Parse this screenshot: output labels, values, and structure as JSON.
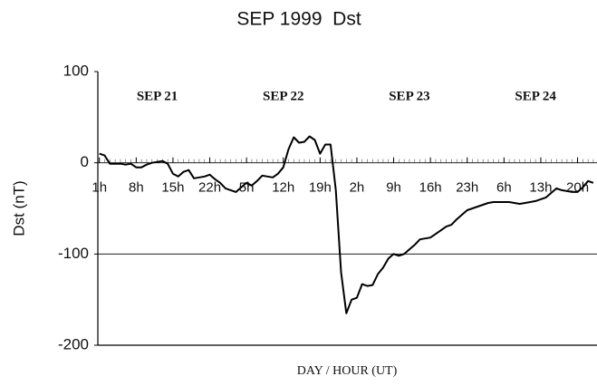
{
  "chart_data": {
    "type": "line",
    "title": "SEP 1999  Dst",
    "ylabel": "Dst (nT)",
    "xlabel": "DAY / HOUR (UT)",
    "annotations": [
      {
        "text": "SEP 21",
        "x": 12
      },
      {
        "text": "SEP 22",
        "x": 36
      },
      {
        "text": "SEP 23",
        "x": 60
      },
      {
        "text": "SEP 24",
        "x": 84
      }
    ],
    "x": [
      1,
      2,
      3,
      4,
      5,
      6,
      7,
      8,
      9,
      10,
      11,
      12,
      13,
      14,
      15,
      16,
      17,
      18,
      19,
      20,
      21,
      22,
      23,
      24,
      25,
      26,
      27,
      28,
      29,
      30,
      31,
      32,
      33,
      34,
      35,
      36,
      37,
      38,
      39,
      40,
      41,
      42,
      43,
      44,
      45,
      46,
      47,
      48,
      49,
      50,
      51,
      52,
      53,
      54,
      55,
      56,
      57,
      58,
      59,
      60,
      61,
      62,
      63,
      64,
      65,
      66,
      67,
      68,
      69,
      70,
      71,
      72,
      73,
      74,
      75,
      76,
      77,
      78,
      79,
      80,
      81,
      82,
      83,
      84,
      85,
      86,
      87,
      88,
      89,
      90,
      91,
      92,
      93,
      94,
      95
    ],
    "series": [
      {
        "name": "Dst",
        "color": "#000000",
        "values": [
          10,
          8,
          -1,
          -1,
          -1,
          -2,
          -1,
          -5,
          -5,
          -2,
          0,
          1,
          2,
          -1,
          -12,
          -15,
          -10,
          -8,
          -17,
          -16,
          -15,
          -13,
          -18,
          -22,
          -28,
          -30,
          -32,
          -27,
          -22,
          -25,
          -20,
          -14,
          -15,
          -16,
          -12,
          -5,
          15,
          28,
          22,
          23,
          29,
          25,
          10,
          20,
          20,
          -30,
          -120,
          -165,
          -150,
          -148,
          -133,
          -135,
          -134,
          -122,
          -115,
          -105,
          -100,
          -102,
          -100,
          -95,
          -90,
          -84,
          -83,
          -82,
          -78,
          -74,
          -70,
          -68,
          -62,
          -57,
          -52,
          -50,
          -48,
          -46,
          -44,
          -43,
          -43,
          -43,
          -43,
          -44,
          -45,
          -44,
          -43,
          -42,
          -40,
          -38,
          -33,
          -28,
          -30,
          -31,
          -32,
          -32,
          -27,
          -20,
          -22
        ]
      }
    ],
    "xlim": [
      0.7,
      95.7
    ],
    "xticks": [
      {
        "value": 1,
        "label": "1h"
      },
      {
        "value": 8,
        "label": "8h"
      },
      {
        "value": 15,
        "label": "15h"
      },
      {
        "value": 22,
        "label": "22h"
      },
      {
        "value": 29,
        "label": "5h"
      },
      {
        "value": 36,
        "label": "12h"
      },
      {
        "value": 43,
        "label": "19h"
      },
      {
        "value": 50,
        "label": "2h"
      },
      {
        "value": 57,
        "label": "9h"
      },
      {
        "value": 64,
        "label": "16h"
      },
      {
        "value": 71,
        "label": "23h"
      },
      {
        "value": 78,
        "label": "6h"
      },
      {
        "value": 85,
        "label": "13h"
      },
      {
        "value": 92,
        "label": "20h"
      }
    ],
    "ylim": [
      -200,
      100
    ],
    "yticks": [
      100,
      0,
      -100,
      -200
    ],
    "grid": true
  }
}
